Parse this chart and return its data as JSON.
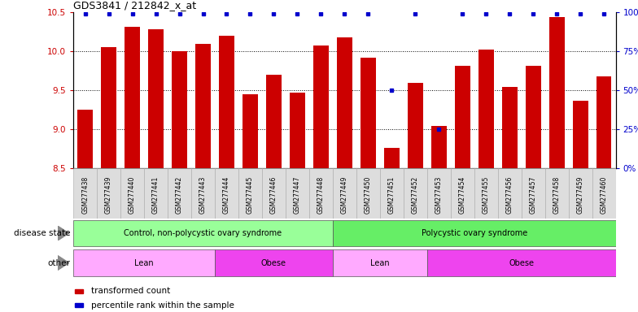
{
  "title": "GDS3841 / 212842_x_at",
  "samples": [
    "GSM277438",
    "GSM277439",
    "GSM277440",
    "GSM277441",
    "GSM277442",
    "GSM277443",
    "GSM277444",
    "GSM277445",
    "GSM277446",
    "GSM277447",
    "GSM277448",
    "GSM277449",
    "GSM277450",
    "GSM277451",
    "GSM277452",
    "GSM277453",
    "GSM277454",
    "GSM277455",
    "GSM277456",
    "GSM277457",
    "GSM277458",
    "GSM277459",
    "GSM277460"
  ],
  "transformed_count": [
    9.25,
    10.06,
    10.32,
    10.28,
    10.0,
    10.1,
    10.2,
    9.45,
    9.7,
    9.47,
    10.08,
    10.18,
    9.92,
    8.76,
    9.6,
    9.05,
    9.82,
    10.02,
    9.55,
    9.82,
    10.44,
    9.37,
    9.68
  ],
  "percentile": [
    99,
    99,
    99,
    99,
    99,
    99,
    99,
    99,
    99,
    99,
    99,
    99,
    99,
    50,
    99,
    25,
    99,
    99,
    99,
    99,
    99,
    99,
    99
  ],
  "bar_color": "#cc0000",
  "percentile_color": "#0000cc",
  "ylim_left": [
    8.5,
    10.5
  ],
  "ylim_right": [
    0,
    100
  ],
  "yticks_left": [
    8.5,
    9.0,
    9.5,
    10.0,
    10.5
  ],
  "yticks_right": [
    0,
    25,
    50,
    75,
    100
  ],
  "disease_state_groups": [
    {
      "label": "Control, non-polycystic ovary syndrome",
      "start": 0,
      "end": 11,
      "color": "#99ff99"
    },
    {
      "label": "Polycystic ovary syndrome",
      "start": 11,
      "end": 23,
      "color": "#66ee66"
    }
  ],
  "other_groups": [
    {
      "label": "Lean",
      "start": 0,
      "end": 6,
      "color": "#ffaaff"
    },
    {
      "label": "Obese",
      "start": 6,
      "end": 11,
      "color": "#ee44ee"
    },
    {
      "label": "Lean",
      "start": 11,
      "end": 15,
      "color": "#ffaaff"
    },
    {
      "label": "Obese",
      "start": 15,
      "end": 23,
      "color": "#ee44ee"
    }
  ],
  "disease_state_label": "disease state",
  "other_label": "other",
  "legend_bar_label": "transformed count",
  "legend_dot_label": "percentile rank within the sample",
  "tick_bg_color": "#dddddd",
  "bg_color": "#ffffff"
}
